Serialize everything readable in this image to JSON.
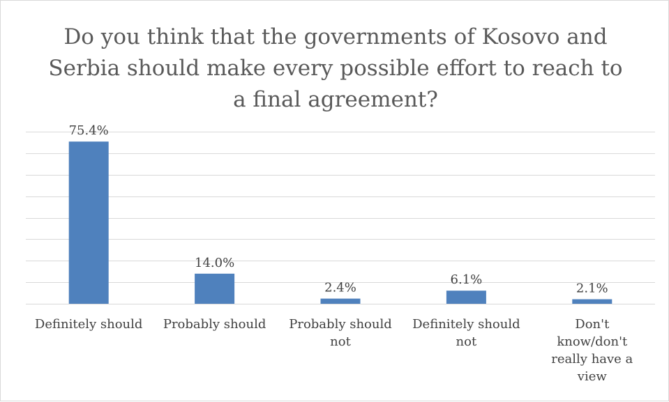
{
  "chart_data": {
    "type": "bar",
    "title": "Do you think that the governments of Kosovo and Serbia should make every possible effort to reach to a final agreement?",
    "categories": [
      "Definitely should",
      "Probably should",
      "Probably should not",
      "Definitely should not",
      "Don't know/don't really have a view"
    ],
    "values": [
      75.4,
      14.0,
      2.4,
      6.1,
      2.1
    ],
    "value_labels": [
      "75.4%",
      "14.0%",
      "2.4%",
      "6.1%",
      "2.1%"
    ],
    "ylim": [
      0,
      80
    ],
    "grid": true,
    "legend": "none",
    "bar_color": "#4f81bd"
  }
}
